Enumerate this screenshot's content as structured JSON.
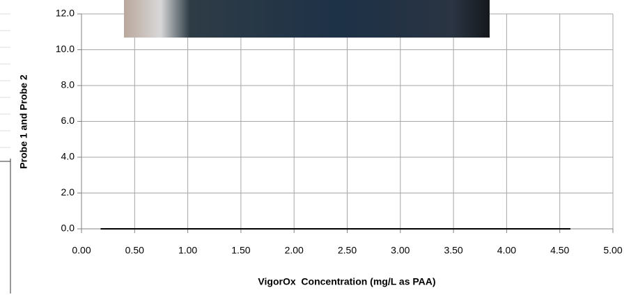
{
  "chart_data": {
    "type": "line",
    "x_label": "VigorOx  Concentration (mg/L as PAA)",
    "y_label": "Probe 1 and Probe 2",
    "xlim": [
      0,
      5
    ],
    "xticks": [
      {
        "value": 0,
        "label": "0.00"
      },
      {
        "value": 0.5,
        "label": "0.50"
      },
      {
        "value": 1,
        "label": "1.00"
      },
      {
        "value": 1.5,
        "label": "1.50"
      },
      {
        "value": 2,
        "label": "2.00"
      },
      {
        "value": 2.5,
        "label": "2.50"
      },
      {
        "value": 3,
        "label": "3.00"
      },
      {
        "value": 3.5,
        "label": "3.50"
      },
      {
        "value": 4,
        "label": "4.00"
      },
      {
        "value": 4.5,
        "label": "4.50"
      },
      {
        "value": 5,
        "label": "5.00"
      }
    ],
    "ylim": [
      0,
      12
    ],
    "yticks": [
      {
        "value": 0,
        "label": "0.0"
      },
      {
        "value": 2,
        "label": "2.0"
      },
      {
        "value": 4,
        "label": "4.0"
      },
      {
        "value": 6,
        "label": "6.0"
      },
      {
        "value": 8,
        "label": "8.0"
      },
      {
        "value": 10,
        "label": "10.0"
      },
      {
        "value": 12,
        "label": "12.0"
      }
    ],
    "grid": true,
    "series": [
      {
        "color": "#000000",
        "x": [
          0.18,
          4.6
        ],
        "values": [
          0,
          0
        ]
      }
    ]
  }
}
